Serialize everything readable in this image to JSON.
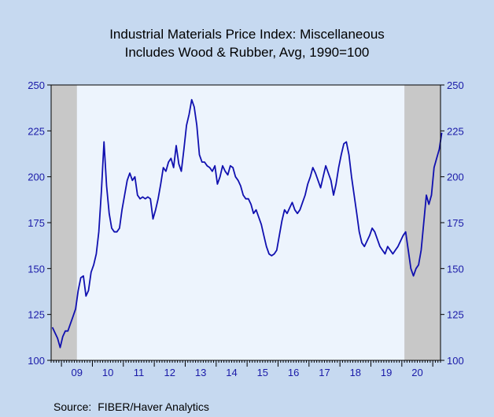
{
  "title_lines": [
    "Industrial Materials Price Index: Miscellaneous",
    "Includes Wood & Rubber, Avg, 1990=100"
  ],
  "source": {
    "label": "Source:",
    "text": "FIBER/Haver Analytics"
  },
  "colors": {
    "page_bg": "#c6d9f0",
    "plot_bg": "#edf4fd",
    "recession": "#c8c8c8",
    "line": "#1010b0",
    "axis_text": "#1a1aa8"
  },
  "chart_data": {
    "type": "line",
    "title": "Industrial Materials Price Index: Miscellaneous, Includes Wood & Rubber, Avg, 1990=100",
    "xlabel": "",
    "ylabel": "",
    "x_ticks": [
      "09",
      "10",
      "11",
      "12",
      "13",
      "14",
      "15",
      "16",
      "17",
      "18",
      "19",
      "20"
    ],
    "xlim": [
      "2008-09",
      "2021-03"
    ],
    "ylim": [
      100,
      250
    ],
    "y_ticks": [
      100,
      125,
      150,
      175,
      200,
      225,
      250
    ],
    "y_axis_both_sides": true,
    "grid": false,
    "recession_shading": [
      [
        "2008-09",
        "2009-06"
      ],
      [
        "2020-02",
        "2021-03"
      ]
    ],
    "series": [
      {
        "values": [
          [
            "2008-09",
            118
          ],
          [
            "2008-10",
            115
          ],
          [
            "2008-11",
            112
          ],
          [
            "2008-12",
            107
          ],
          [
            "2009-01",
            113
          ],
          [
            "2009-02",
            116
          ],
          [
            "2009-03",
            116
          ],
          [
            "2009-04",
            120
          ],
          [
            "2009-05",
            124
          ],
          [
            "2009-06",
            128
          ],
          [
            "2009-07",
            138
          ],
          [
            "2009-08",
            145
          ],
          [
            "2009-09",
            146
          ],
          [
            "2009-10",
            135
          ],
          [
            "2009-11",
            138
          ],
          [
            "2009-12",
            148
          ],
          [
            "2010-01",
            152
          ],
          [
            "2010-02",
            158
          ],
          [
            "2010-03",
            170
          ],
          [
            "2010-04",
            192
          ],
          [
            "2010-05",
            219
          ],
          [
            "2010-06",
            195
          ],
          [
            "2010-07",
            180
          ],
          [
            "2010-08",
            172
          ],
          [
            "2010-09",
            170
          ],
          [
            "2010-10",
            170
          ],
          [
            "2010-11",
            172
          ],
          [
            "2010-12",
            182
          ],
          [
            "2011-01",
            190
          ],
          [
            "2011-02",
            198
          ],
          [
            "2011-03",
            202
          ],
          [
            "2011-04",
            198
          ],
          [
            "2011-05",
            200
          ],
          [
            "2011-06",
            190
          ],
          [
            "2011-07",
            188
          ],
          [
            "2011-08",
            189
          ],
          [
            "2011-09",
            188
          ],
          [
            "2011-10",
            189
          ],
          [
            "2011-11",
            188
          ],
          [
            "2011-12",
            177
          ],
          [
            "2012-01",
            182
          ],
          [
            "2012-02",
            188
          ],
          [
            "2012-03",
            196
          ],
          [
            "2012-04",
            205
          ],
          [
            "2012-05",
            203
          ],
          [
            "2012-06",
            208
          ],
          [
            "2012-07",
            210
          ],
          [
            "2012-08",
            205
          ],
          [
            "2012-09",
            217
          ],
          [
            "2012-10",
            207
          ],
          [
            "2012-11",
            203
          ],
          [
            "2012-12",
            215
          ],
          [
            "2013-01",
            228
          ],
          [
            "2013-02",
            234
          ],
          [
            "2013-03",
            242
          ],
          [
            "2013-04",
            238
          ],
          [
            "2013-05",
            228
          ],
          [
            "2013-06",
            212
          ],
          [
            "2013-07",
            208
          ],
          [
            "2013-08",
            208
          ],
          [
            "2013-09",
            206
          ],
          [
            "2013-10",
            205
          ],
          [
            "2013-11",
            203
          ],
          [
            "2013-12",
            206
          ],
          [
            "2014-01",
            196
          ],
          [
            "2014-02",
            200
          ],
          [
            "2014-03",
            206
          ],
          [
            "2014-04",
            203
          ],
          [
            "2014-05",
            201
          ],
          [
            "2014-06",
            206
          ],
          [
            "2014-07",
            205
          ],
          [
            "2014-08",
            200
          ],
          [
            "2014-09",
            198
          ],
          [
            "2014-10",
            195
          ],
          [
            "2014-11",
            190
          ],
          [
            "2014-12",
            188
          ],
          [
            "2015-01",
            188
          ],
          [
            "2015-02",
            185
          ],
          [
            "2015-03",
            180
          ],
          [
            "2015-04",
            182
          ],
          [
            "2015-05",
            178
          ],
          [
            "2015-06",
            174
          ],
          [
            "2015-07",
            168
          ],
          [
            "2015-08",
            162
          ],
          [
            "2015-09",
            158
          ],
          [
            "2015-10",
            157
          ],
          [
            "2015-11",
            158
          ],
          [
            "2015-12",
            160
          ],
          [
            "2016-01",
            168
          ],
          [
            "2016-02",
            176
          ],
          [
            "2016-03",
            182
          ],
          [
            "2016-04",
            180
          ],
          [
            "2016-05",
            183
          ],
          [
            "2016-06",
            186
          ],
          [
            "2016-07",
            182
          ],
          [
            "2016-08",
            180
          ],
          [
            "2016-09",
            182
          ],
          [
            "2016-10",
            186
          ],
          [
            "2016-11",
            190
          ],
          [
            "2016-12",
            196
          ],
          [
            "2017-01",
            200
          ],
          [
            "2017-02",
            205
          ],
          [
            "2017-03",
            202
          ],
          [
            "2017-04",
            198
          ],
          [
            "2017-05",
            194
          ],
          [
            "2017-06",
            200
          ],
          [
            "2017-07",
            206
          ],
          [
            "2017-08",
            202
          ],
          [
            "2017-09",
            198
          ],
          [
            "2017-10",
            190
          ],
          [
            "2017-11",
            196
          ],
          [
            "2017-12",
            205
          ],
          [
            "2018-01",
            212
          ],
          [
            "2018-02",
            218
          ],
          [
            "2018-03",
            219
          ],
          [
            "2018-04",
            212
          ],
          [
            "2018-05",
            200
          ],
          [
            "2018-06",
            190
          ],
          [
            "2018-07",
            180
          ],
          [
            "2018-08",
            170
          ],
          [
            "2018-09",
            164
          ],
          [
            "2018-10",
            162
          ],
          [
            "2018-11",
            165
          ],
          [
            "2018-12",
            168
          ],
          [
            "2019-01",
            172
          ],
          [
            "2019-02",
            170
          ],
          [
            "2019-03",
            166
          ],
          [
            "2019-04",
            162
          ],
          [
            "2019-05",
            160
          ],
          [
            "2019-06",
            158
          ],
          [
            "2019-07",
            162
          ],
          [
            "2019-08",
            160
          ],
          [
            "2019-09",
            158
          ],
          [
            "2019-10",
            160
          ],
          [
            "2019-11",
            162
          ],
          [
            "2019-12",
            165
          ],
          [
            "2020-01",
            168
          ],
          [
            "2020-02",
            170
          ],
          [
            "2020-03",
            160
          ],
          [
            "2020-04",
            150
          ],
          [
            "2020-05",
            146
          ],
          [
            "2020-06",
            150
          ],
          [
            "2020-07",
            152
          ],
          [
            "2020-08",
            160
          ],
          [
            "2020-09",
            175
          ],
          [
            "2020-10",
            190
          ],
          [
            "2020-11",
            185
          ],
          [
            "2020-12",
            190
          ],
          [
            "2021-01",
            205
          ],
          [
            "2021-02",
            210
          ],
          [
            "2021-03",
            215
          ],
          [
            "2021-04",
            224
          ]
        ]
      }
    ]
  }
}
